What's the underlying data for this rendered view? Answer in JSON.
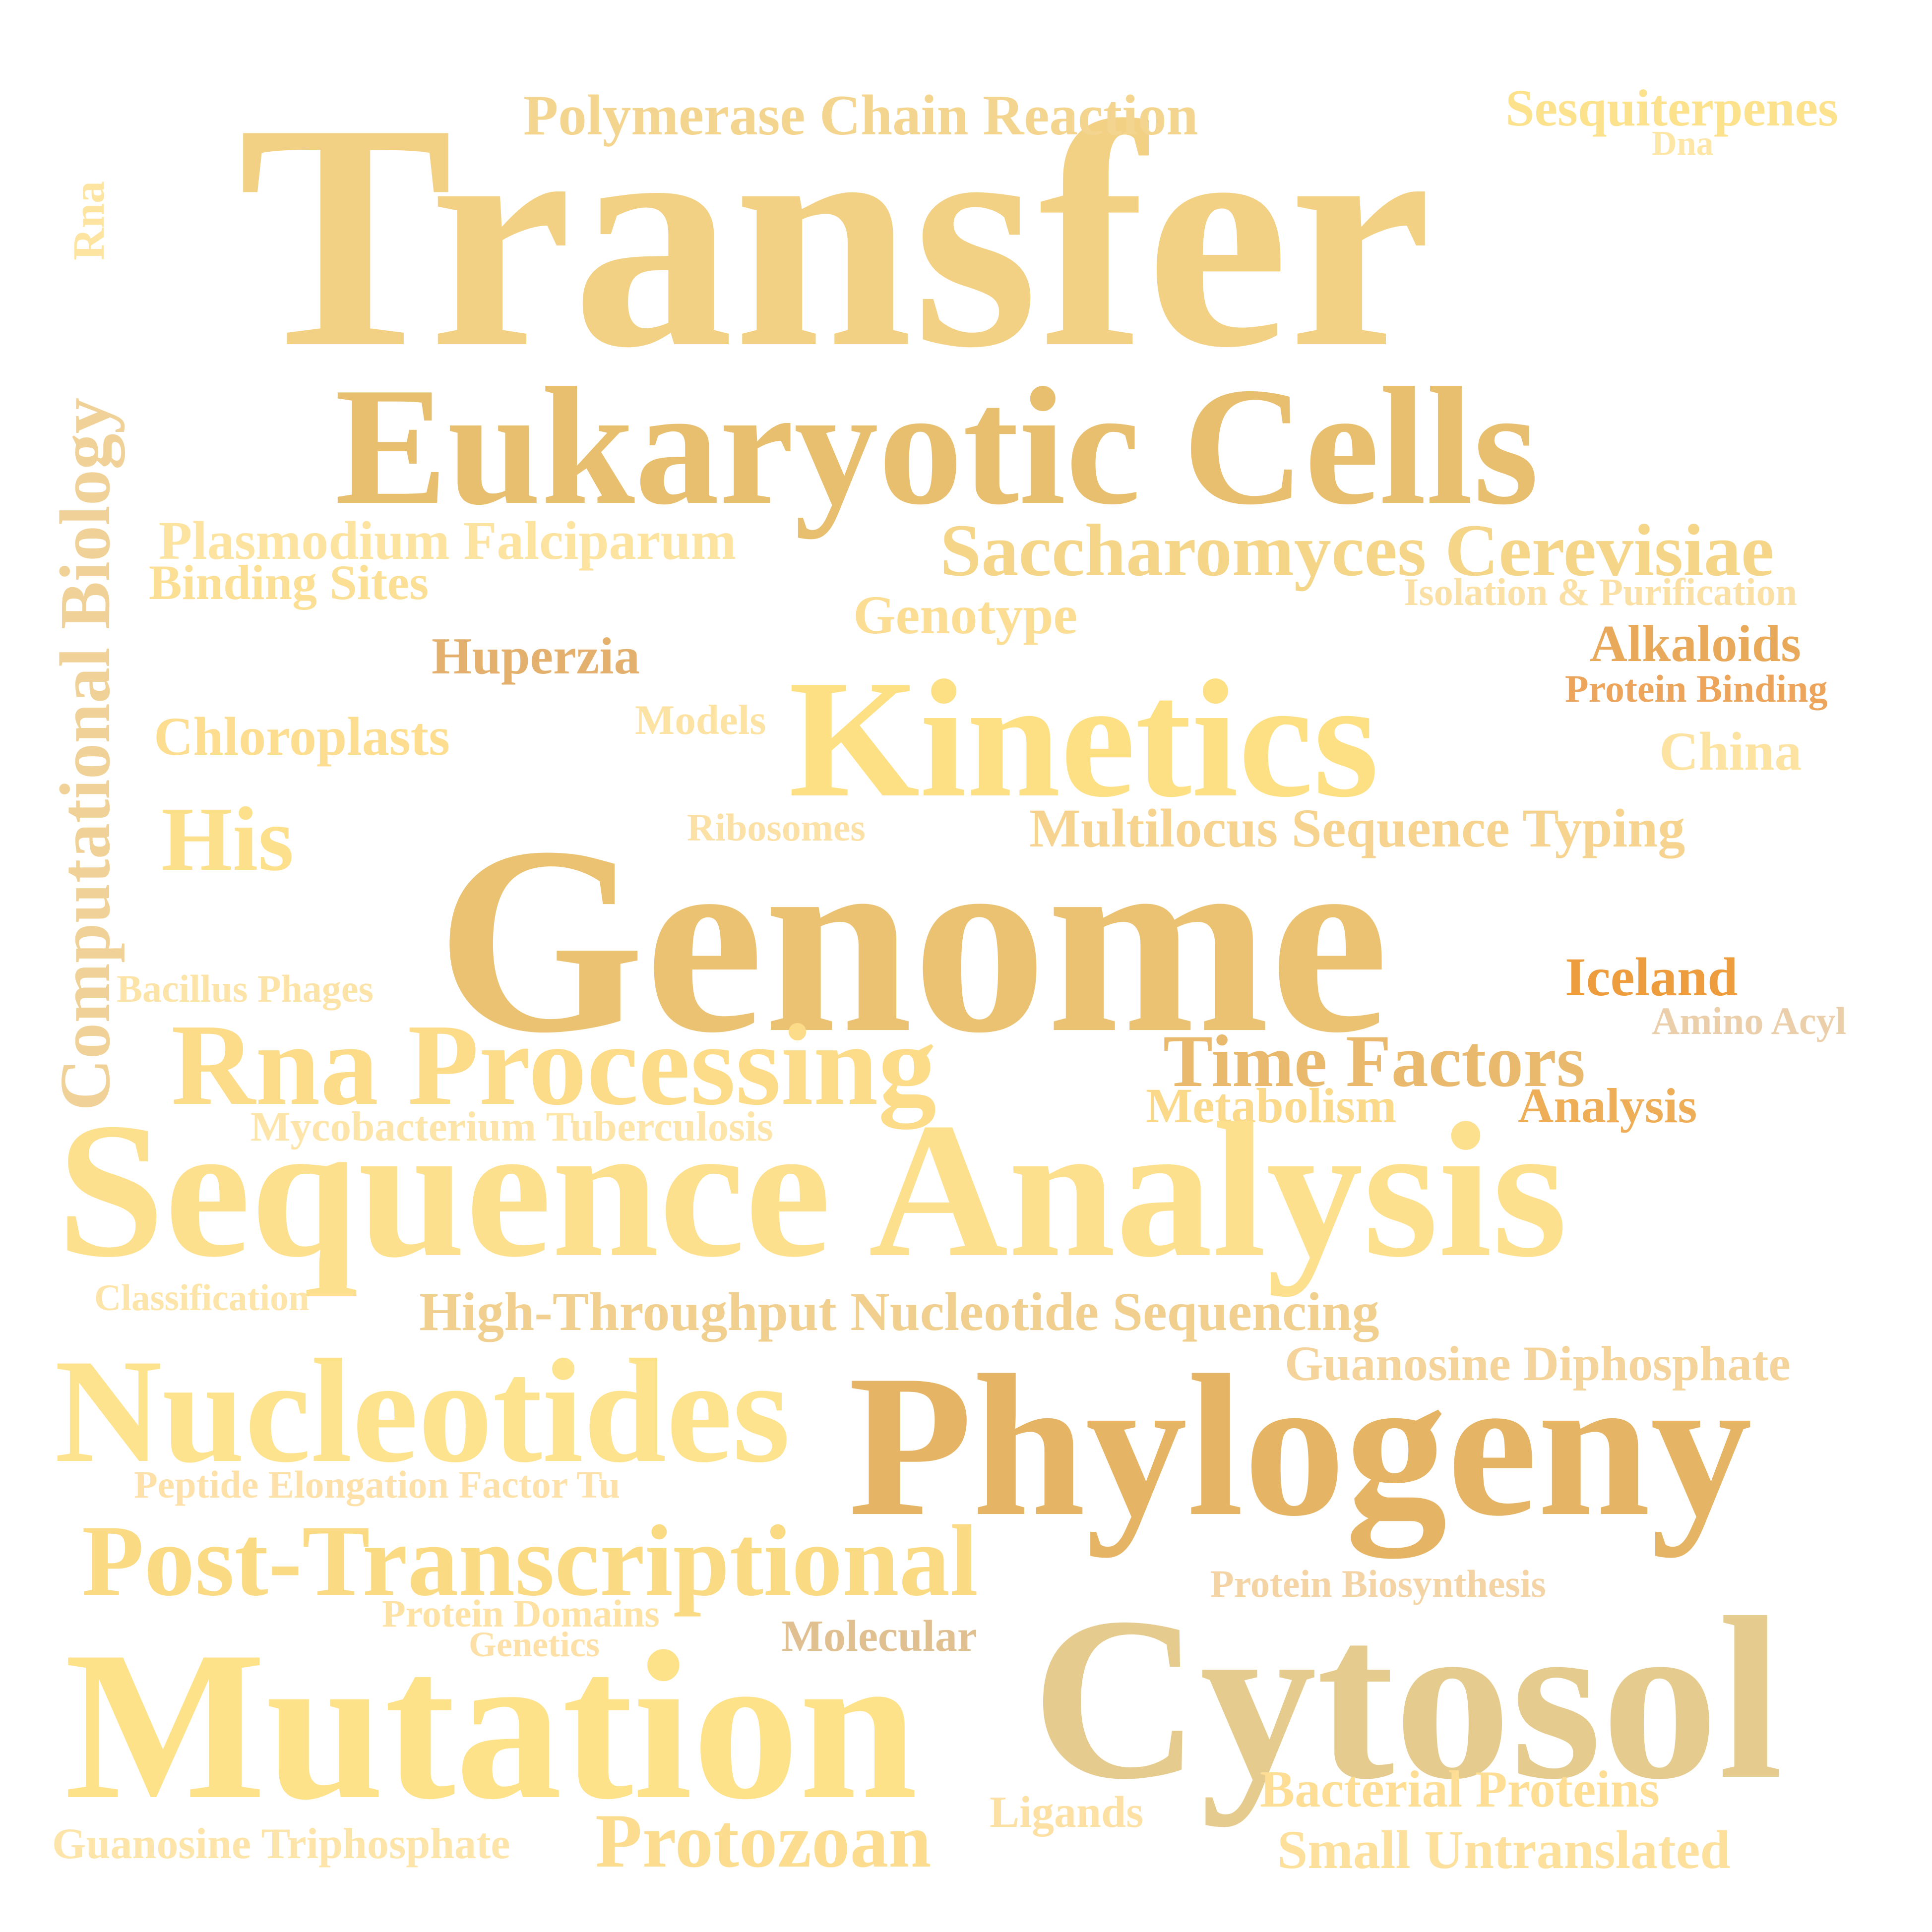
{
  "word_cloud": {
    "words": [
      {
        "text": "Transfer",
        "color": "#f2d184"
      },
      {
        "text": "Polymerase Chain Reaction",
        "color": "#f4d58f"
      },
      {
        "text": "Sesquiterpenes",
        "color": "#fde28e"
      },
      {
        "text": "Dna",
        "color": "#fde6a6"
      },
      {
        "text": "Rna",
        "color": "#fde4a0"
      },
      {
        "text": "Computational Biology",
        "color": "#f0d298"
      },
      {
        "text": "Eukaryotic Cells",
        "color": "#e8bf6f"
      },
      {
        "text": "Plasmodium Falciparum",
        "color": "#fde3a0"
      },
      {
        "text": "Binding Sites",
        "color": "#fbdf95"
      },
      {
        "text": "Saccharomyces Cerevisiae",
        "color": "#f5d588"
      },
      {
        "text": "Isolation & Purification",
        "color": "#fbe0a5"
      },
      {
        "text": "Genotype",
        "color": "#fbdd94"
      },
      {
        "text": "Huperzia",
        "color": "#e4b06d"
      },
      {
        "text": "Alkaloids",
        "color": "#e9a95a"
      },
      {
        "text": "Protein Binding",
        "color": "#eda45b"
      },
      {
        "text": "Kinetics",
        "color": "#fde083"
      },
      {
        "text": "Chloroplasts",
        "color": "#fdde90"
      },
      {
        "text": "Models",
        "color": "#fde3a3"
      },
      {
        "text": "China",
        "color": "#fde3a2"
      },
      {
        "text": "His",
        "color": "#fde08c"
      },
      {
        "text": "Ribosomes",
        "color": "#fbe1a6"
      },
      {
        "text": "Multilocus Sequence Typing",
        "color": "#f6d38e"
      },
      {
        "text": "Genome",
        "color": "#ebc271"
      },
      {
        "text": "Iceland",
        "color": "#ed9d3e"
      },
      {
        "text": "Bacillus Phages",
        "color": "#fce3a7"
      },
      {
        "text": "Amino Acyl",
        "color": "#ebceaa"
      },
      {
        "text": "Rna Processing",
        "color": "#fddc89"
      },
      {
        "text": "Time Factors",
        "color": "#e9b96d"
      },
      {
        "text": "Metabolism",
        "color": "#fbd98b"
      },
      {
        "text": "Analysis",
        "color": "#eeae58"
      },
      {
        "text": "Mycobacterium Tuberculosis",
        "color": "#fde4a8"
      },
      {
        "text": "Sequence Analysis",
        "color": "#fde08d"
      },
      {
        "text": "Classification",
        "color": "#fde4a9"
      },
      {
        "text": "High-Throughput Nucleotide Sequencing",
        "color": "#f0cf8f"
      },
      {
        "text": "Guanosine Diphosphate",
        "color": "#f4d49b"
      },
      {
        "text": "Nucleotides",
        "color": "#fde38e"
      },
      {
        "text": "Phylogeny",
        "color": "#e5b565"
      },
      {
        "text": "Peptide Elongation Factor Tu",
        "color": "#fde1a8"
      },
      {
        "text": "Post-Transcriptional",
        "color": "#fbda84"
      },
      {
        "text": "Protein Biosynthesis",
        "color": "#f4d3a5"
      },
      {
        "text": "Protein Domains",
        "color": "#fde2a4"
      },
      {
        "text": "Genetics",
        "color": "#fce0a7"
      },
      {
        "text": "Molecular",
        "color": "#e0c090"
      },
      {
        "text": "Mutation",
        "color": "#fde28a"
      },
      {
        "text": "Cytosol",
        "color": "#e5cc8e"
      },
      {
        "text": "Bacterial Proteins",
        "color": "#fdde94"
      },
      {
        "text": "Ligands",
        "color": "#fde1a4"
      },
      {
        "text": "Guanosine Triphosphate",
        "color": "#fde4a9"
      },
      {
        "text": "Protozoan",
        "color": "#fcdc8e"
      },
      {
        "text": "Small Untranslated",
        "color": "#fde09c"
      }
    ]
  }
}
